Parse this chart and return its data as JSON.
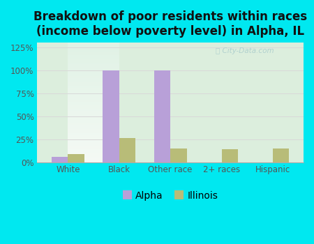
{
  "title": "Breakdown of poor residents within races\n(income below poverty level) in Alpha, IL",
  "categories": [
    "White",
    "Black",
    "Other race",
    "2+ races",
    "Hispanic"
  ],
  "alpha_values": [
    6,
    100,
    100,
    0,
    0
  ],
  "illinois_values": [
    9,
    26,
    15,
    14,
    15
  ],
  "alpha_color": "#b8a0d8",
  "illinois_color": "#b8bc78",
  "background_outer": "#00e8f0",
  "background_inner_tl": "#e8f5ee",
  "background_inner_br": "#d8eedc",
  "ylim": [
    0,
    130
  ],
  "yticks": [
    0,
    25,
    50,
    75,
    100,
    125
  ],
  "ytick_labels": [
    "0%",
    "25%",
    "50%",
    "75%",
    "100%",
    "125%"
  ],
  "bar_width": 0.32,
  "title_fontsize": 12,
  "legend_labels": [
    "Alpha",
    "Illinois"
  ],
  "grid_color": "#d8d8d8",
  "watermark": "ⓘ City-Data.com",
  "tick_color": "#555555",
  "spine_color": "#aaaaaa"
}
